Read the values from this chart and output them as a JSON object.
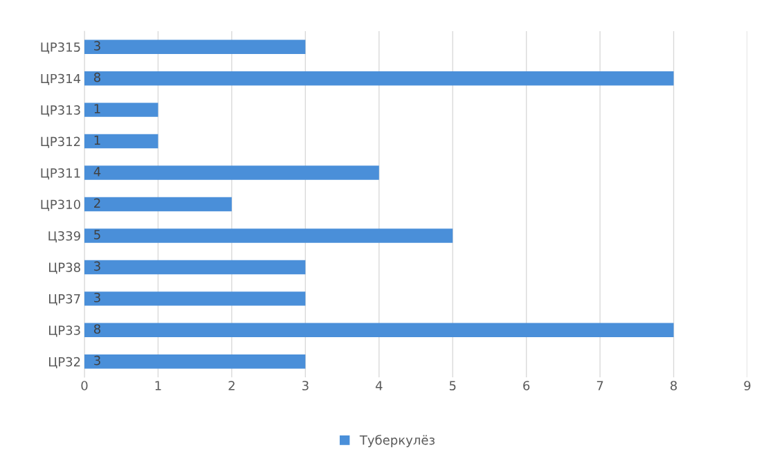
{
  "chart_data": {
    "type": "bar",
    "orientation": "horizontal",
    "categories": [
      "ЦР315",
      "ЦР314",
      "ЦР313",
      "ЦР312",
      "ЦР311",
      "ЦР310",
      "Ц339",
      "ЦР38",
      "ЦР37",
      "ЦР33",
      "ЦР32"
    ],
    "series": [
      {
        "name": "Туберкулёз",
        "color": "#4a8fd9",
        "values": [
          3,
          8,
          1,
          1,
          4,
          2,
          5,
          3,
          3,
          8,
          3
        ]
      }
    ],
    "xlim": [
      0,
      9
    ],
    "xticks": [
      0,
      1,
      2,
      3,
      4,
      5,
      6,
      7,
      8,
      9
    ],
    "grid": "x",
    "legend": "bottom",
    "data_labels": true
  }
}
